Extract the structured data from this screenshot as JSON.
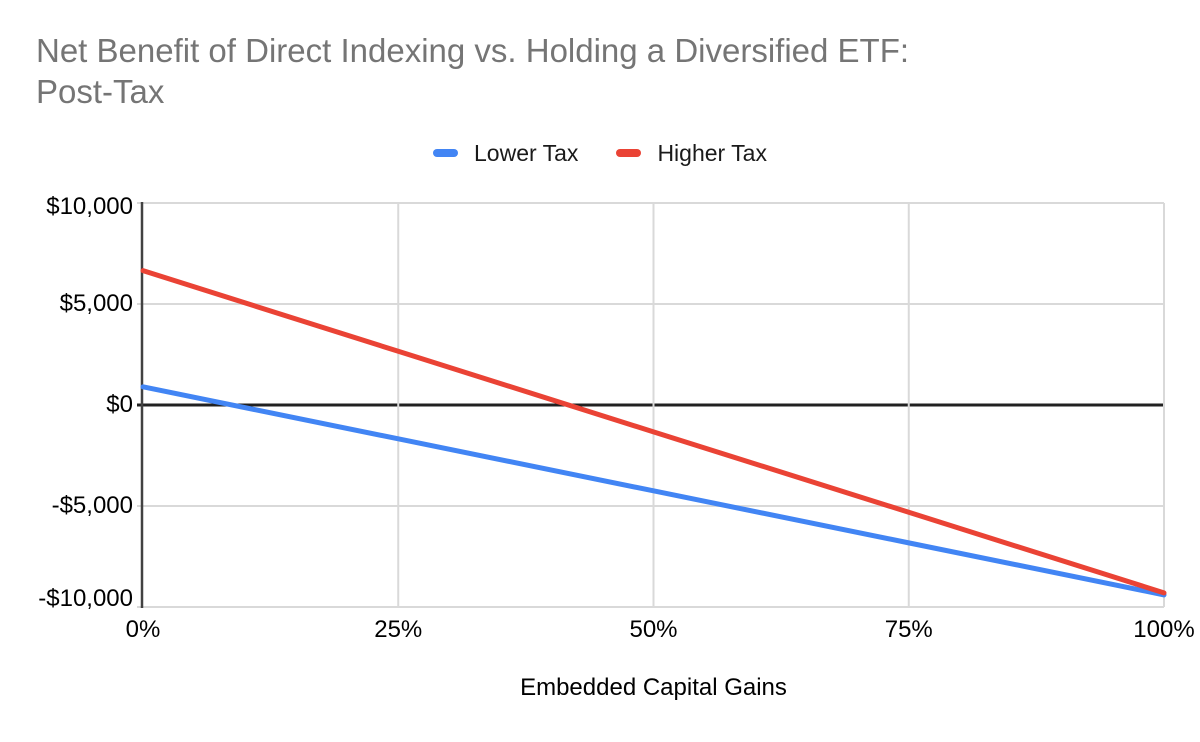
{
  "title": {
    "line1": "Net Benefit of Direct Indexing vs. Holding a Diversified ETF:",
    "line2": "Post-Tax"
  },
  "chart_data": {
    "type": "line",
    "title": "Net Benefit of Direct Indexing vs. Holding a Diversified ETF: Post-Tax",
    "xlabel": "Embedded Capital Gains",
    "ylabel": "",
    "x": [
      0,
      25,
      50,
      75,
      100
    ],
    "xlim": [
      0,
      100
    ],
    "ylim": [
      -10000,
      10000
    ],
    "grid": true,
    "legend_position": "top",
    "series": [
      {
        "name": "Lower Tax",
        "color": "#4285F4",
        "values": [
          900,
          -1675,
          -4250,
          -6825,
          -9400
        ]
      },
      {
        "name": "Higher Tax",
        "color": "#EA4335",
        "values": [
          6650,
          2660,
          -1330,
          -5310,
          -9300
        ]
      }
    ],
    "xticks": {
      "values": [
        0,
        25,
        50,
        75,
        100
      ],
      "labels": [
        "0%",
        "25%",
        "50%",
        "75%",
        "100%"
      ]
    },
    "yticks": {
      "values": [
        10000,
        5000,
        0,
        -5000,
        -10000
      ],
      "labels": [
        "$10,000",
        "$5,000",
        "$0",
        "-$5,000",
        "-$10,000"
      ]
    },
    "colors": {
      "title": "#757575",
      "tick_label": "#000000",
      "gridline": "#d9d9d9",
      "zero_line": "#212121",
      "axis_line": "#424242",
      "background": "#ffffff"
    }
  }
}
